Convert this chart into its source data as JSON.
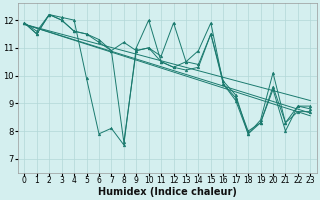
{
  "xlabel": "Humidex (Indice chaleur)",
  "bg_color": "#d4efef",
  "grid_color": "#b2d8d8",
  "line_color": "#1a7a6e",
  "xlim": [
    -0.5,
    23.5
  ],
  "ylim": [
    6.5,
    12.6
  ],
  "yticks": [
    7,
    8,
    9,
    10,
    11,
    12
  ],
  "xticks": [
    0,
    1,
    2,
    3,
    4,
    5,
    6,
    7,
    8,
    9,
    10,
    11,
    12,
    13,
    14,
    15,
    16,
    17,
    18,
    19,
    20,
    21,
    22,
    23
  ],
  "series": [
    [
      11.9,
      11.6,
      12.2,
      12.1,
      12.0,
      9.9,
      7.9,
      8.1,
      7.5,
      11.0,
      12.0,
      10.5,
      10.3,
      10.2,
      10.3,
      11.5,
      9.8,
      9.3,
      7.9,
      8.4,
      10.1,
      8.3,
      8.9,
      8.9
    ],
    [
      11.9,
      11.5,
      12.2,
      12.0,
      11.6,
      11.5,
      11.3,
      10.9,
      7.6,
      10.9,
      11.0,
      10.7,
      11.9,
      10.5,
      10.9,
      11.9,
      9.7,
      9.2,
      8.0,
      8.3,
      9.6,
      8.3,
      8.7,
      8.7
    ],
    [
      11.9,
      11.5,
      12.2,
      12.0,
      11.6,
      11.5,
      11.2,
      10.9,
      11.2,
      10.9,
      11.0,
      10.5,
      10.3,
      10.5,
      10.4,
      11.5,
      9.7,
      9.1,
      7.9,
      8.3,
      9.5,
      8.0,
      8.9,
      8.8
    ]
  ],
  "trend_lines": [
    {
      "x0": 0,
      "y0": 11.85,
      "x1": 23,
      "y1": 9.1
    },
    {
      "x0": 0,
      "y0": 11.85,
      "x1": 23,
      "y1": 8.65
    },
    {
      "x0": 0,
      "y0": 11.85,
      "x1": 23,
      "y1": 8.55
    }
  ],
  "tick_fontsize": 5.5,
  "xlabel_fontsize": 7,
  "marker_size": 2.0
}
